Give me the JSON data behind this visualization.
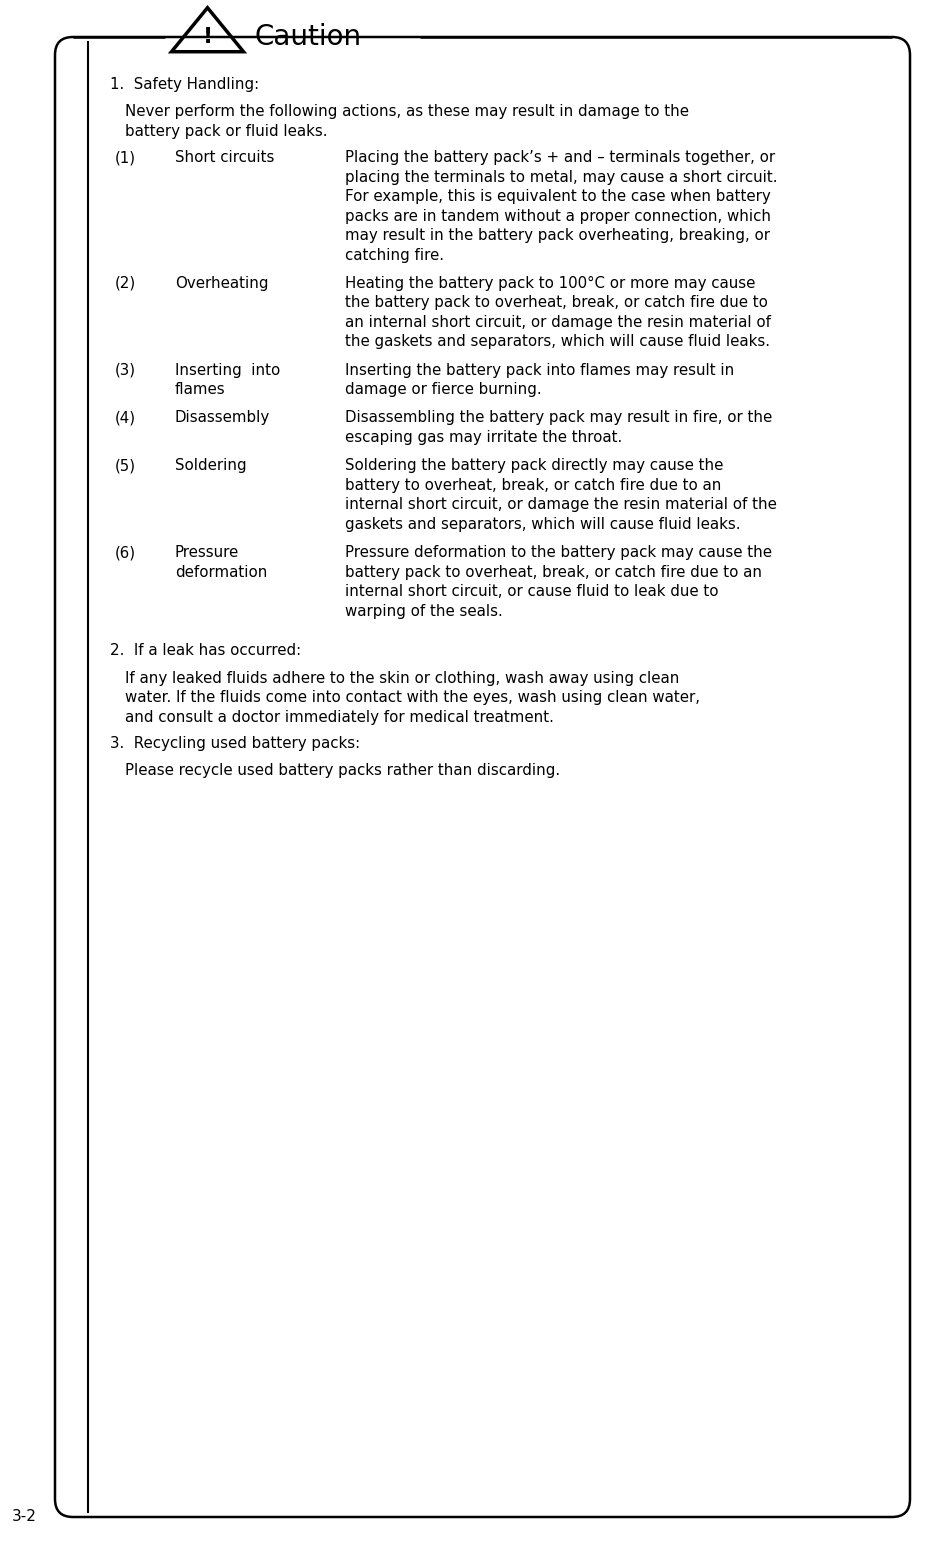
{
  "title": "Caution",
  "page_number": "3-2",
  "background_color": "#ffffff",
  "border_color": "#000000",
  "text_color": "#000000",
  "title_fontsize": 20,
  "body_fontsize": 10.8,
  "content": {
    "section1_title": "1.  Safety Handling:",
    "section1_intro": "Never perform the following actions, as these may result in damage to the\nbattery pack or fluid leaks.",
    "items": [
      {
        "num": "(1)",
        "heading": "Short circuits",
        "text": "Placing the battery pack’s + and – terminals together, or\nplacing the terminals to metal, may cause a short circuit.\nFor example, this is equivalent to the case when battery\npacks are in tandem without a proper connection, which\nmay result in the battery pack overheating, breaking, or\ncatching fire."
      },
      {
        "num": "(2)",
        "heading": "Overheating",
        "text": "Heating the battery pack to 100°C or more may cause\nthe battery pack to overheat, break, or catch fire due to\nan internal short circuit, or damage the resin material of\nthe gaskets and separators, which will cause fluid leaks."
      },
      {
        "num": "(3)",
        "heading": "Inserting  into\nflames",
        "text": "Inserting the battery pack into flames may result in\ndamage or fierce burning."
      },
      {
        "num": "(4)",
        "heading": "Disassembly",
        "text": "Disassembling the battery pack may result in fire, or the\nescaping gas may irritate the throat."
      },
      {
        "num": "(5)",
        "heading": "Soldering",
        "text": "Soldering the battery pack directly may cause the\nbattery to overheat, break, or catch fire due to an\ninternal short circuit, or damage the resin material of the\ngaskets and separators, which will cause fluid leaks."
      },
      {
        "num": "(6)",
        "heading": "Pressure\ndeformation",
        "text": "Pressure deformation to the battery pack may cause the\nbattery pack to overheat, break, or catch fire due to an\ninternal short circuit, or cause fluid to leak due to\nwarping of the seals."
      }
    ],
    "section2_title": "2.  If a leak has occurred:",
    "section2_text": "If any leaked fluids adhere to the skin or clothing, wash away using clean\nwater. If the fluids come into contact with the eyes, wash using clean water,\nand consult a doctor immediately for medical treatment.",
    "section3_title": "3.  Recycling used battery packs:",
    "section3_text": "Please recycle used battery packs rather than discarding."
  }
}
